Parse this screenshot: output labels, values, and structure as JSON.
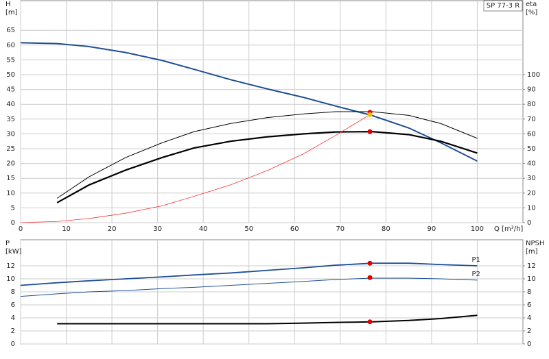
{
  "title": "SP 77-3 R",
  "chart_data": [
    {
      "type": "line",
      "ylabel": [
        "H",
        "[m]"
      ],
      "y2label": [
        "eta",
        "[%]"
      ],
      "xlabel": "Q [m³/h]",
      "xlim": [
        0,
        110
      ],
      "xticks": [
        0,
        10,
        20,
        30,
        40,
        50,
        60,
        70,
        80,
        90,
        100
      ],
      "show_xtick_labels": true,
      "ylim": [
        0,
        75
      ],
      "yticks": [
        0,
        5,
        10,
        15,
        20,
        25,
        30,
        35,
        40,
        45,
        50,
        55,
        60,
        65
      ],
      "y2lim": [
        0,
        150
      ],
      "y2ticks": [
        0,
        10,
        20,
        30,
        40,
        50,
        60,
        70,
        80,
        90,
        100
      ],
      "grid": true,
      "series": [
        {
          "color": "#1f4e96",
          "line_width": 2,
          "x": [
            0,
            8,
            15,
            23,
            31,
            38,
            46,
            54,
            62,
            69,
            77,
            85,
            92,
            100
          ],
          "values": [
            60.8,
            60.5,
            59.5,
            57.5,
            54.8,
            51.8,
            48.3,
            45.2,
            42.3,
            39.4,
            36.2,
            32,
            27,
            20.8
          ]
        },
        {
          "color": "#000000",
          "line_width": 1,
          "axis": "y2",
          "x": [
            8,
            15,
            23,
            31,
            38,
            46,
            54,
            62,
            69,
            77,
            85,
            92,
            100
          ],
          "values": [
            16.5,
            31,
            44,
            54,
            61.5,
            67,
            71,
            73.5,
            75,
            75,
            72.5,
            67,
            57
          ]
        },
        {
          "color": "#000000",
          "line_width": 2.2,
          "axis": "y2",
          "x": [
            8,
            15,
            23,
            31,
            38,
            46,
            54,
            62,
            69,
            77,
            85,
            92,
            100
          ],
          "values": [
            13.5,
            25.5,
            35.5,
            44,
            50.5,
            55,
            58,
            60,
            61.3,
            61.5,
            59.5,
            55,
            47
          ]
        },
        {
          "color": "#ff3030",
          "line_width": 0.8,
          "x": [
            0,
            8,
            15,
            23,
            31,
            38,
            46,
            54,
            62,
            69,
            76.5
          ],
          "values": [
            0,
            0.4,
            1.4,
            3.2,
            5.7,
            8.9,
            12.8,
            17.6,
            23.3,
            29.5,
            36.5
          ]
        }
      ],
      "markers": [
        {
          "x": 76.5,
          "y": 37.3,
          "color": "#e00000"
        },
        {
          "x": 76.5,
          "y": 36.5,
          "color": "#f0c000"
        },
        {
          "x": 76.5,
          "y": 61.5,
          "color": "#e00000",
          "axis": "y2"
        }
      ]
    },
    {
      "type": "line",
      "ylabel": [
        "P",
        "[kW]"
      ],
      "y2label": [
        "NPSH",
        "[m]"
      ],
      "xlim": [
        0,
        110
      ],
      "xticks": [
        0,
        10,
        20,
        30,
        40,
        50,
        60,
        70,
        80,
        90,
        100
      ],
      "show_xtick_labels": false,
      "ylim": [
        0,
        16
      ],
      "yticks": [
        0,
        2,
        4,
        6,
        8,
        10,
        12
      ],
      "y2lim": [
        0,
        16
      ],
      "y2ticks": [
        0,
        2,
        4,
        6,
        8,
        10,
        12
      ],
      "grid": true,
      "series": [
        {
          "name": "P1",
          "color": "#1f4e96",
          "line_width": 1.8,
          "x": [
            0,
            8,
            15,
            23,
            31,
            38,
            46,
            54,
            62,
            69,
            77,
            85,
            92,
            100
          ],
          "values": [
            9.0,
            9.4,
            9.7,
            10,
            10.3,
            10.6,
            10.9,
            11.3,
            11.7,
            12.1,
            12.4,
            12.4,
            12.2,
            12.0
          ]
        },
        {
          "name": "P2",
          "color": "#1f4e96",
          "line_width": 1,
          "x": [
            0,
            8,
            15,
            23,
            31,
            38,
            46,
            54,
            62,
            69,
            77,
            85,
            92,
            100
          ],
          "values": [
            7.3,
            7.7,
            8,
            8.2,
            8.5,
            8.7,
            9,
            9.3,
            9.6,
            9.9,
            10.1,
            10.1,
            10.0,
            9.8
          ]
        },
        {
          "color": "#000000",
          "line_width": 2,
          "axis": "y2",
          "x": [
            8,
            15,
            23,
            31,
            38,
            46,
            54,
            62,
            69,
            77,
            85,
            92,
            100
          ],
          "values": [
            3.1,
            3.1,
            3.1,
            3.1,
            3.1,
            3.1,
            3.1,
            3.2,
            3.3,
            3.4,
            3.6,
            3.9,
            4.4
          ]
        }
      ],
      "markers": [
        {
          "x": 76.5,
          "y": 12.4,
          "color": "#e00000"
        },
        {
          "x": 76.5,
          "y": 10.2,
          "color": "#e00000"
        },
        {
          "x": 76.5,
          "y": 3.4,
          "color": "#e00000",
          "axis": "y2"
        }
      ]
    }
  ]
}
